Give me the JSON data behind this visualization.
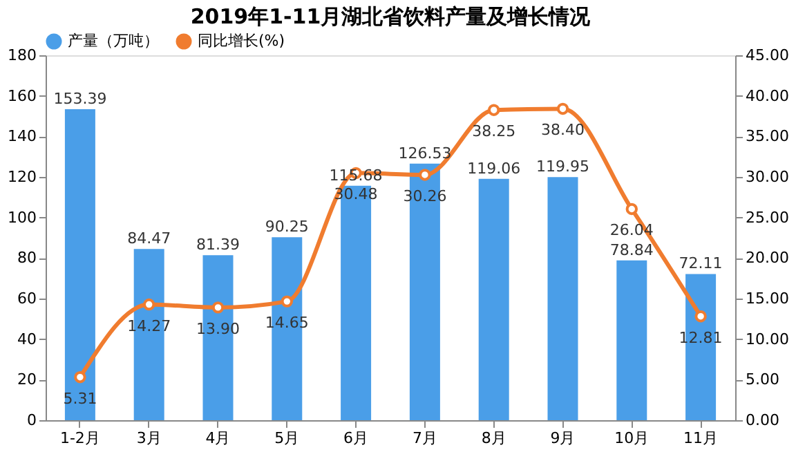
{
  "chart_data": {
    "type": "bar",
    "title": "2019年1-11月湖北省饮料产量及增长情况",
    "categories": [
      "1-2月",
      "3月",
      "4月",
      "5月",
      "6月",
      "7月",
      "8月",
      "9月",
      "10月",
      "11月"
    ],
    "series": [
      {
        "name": "产量（万吨）",
        "color": "#4a9ee8",
        "values": [
          153.39,
          84.47,
          81.39,
          90.25,
          115.68,
          126.53,
          119.06,
          119.95,
          78.84,
          72.11
        ],
        "value_labels": [
          "153.39",
          "84.47",
          "81.39",
          "90.25",
          "115.68",
          "126.53",
          "119.06",
          "119.95",
          "78.84",
          "72.11"
        ]
      },
      {
        "name": "同比增长(%)",
        "type": "line",
        "axis": "y2",
        "color": "#f07c2f",
        "values": [
          5.31,
          14.27,
          13.9,
          14.65,
          30.48,
          30.26,
          38.25,
          38.4,
          26.04,
          12.81
        ],
        "value_labels": [
          "5.31",
          "14.27",
          "13.90",
          "14.65",
          "30.48",
          "30.26",
          "38.25",
          "38.40",
          "26.04",
          "12.81"
        ]
      }
    ],
    "ylim": [
      0,
      180
    ],
    "yticks": [
      0,
      20,
      40,
      60,
      80,
      100,
      120,
      140,
      160,
      180
    ],
    "y2lim": [
      0,
      45
    ],
    "y2ticks": [
      {
        "value": 0,
        "label": "0.00"
      },
      {
        "value": 5,
        "label": "5.00"
      },
      {
        "value": 10,
        "label": "10.00"
      },
      {
        "value": 15,
        "label": "15.00"
      },
      {
        "value": 20,
        "label": "20.00"
      },
      {
        "value": 25,
        "label": "25.00"
      },
      {
        "value": 30,
        "label": "30.00"
      },
      {
        "value": 35,
        "label": "35.00"
      },
      {
        "value": 40,
        "label": "40.00"
      },
      {
        "value": 45,
        "label": "45.00"
      }
    ],
    "grid": false,
    "legend": "top",
    "marker": "circle",
    "line_style": "solid"
  }
}
